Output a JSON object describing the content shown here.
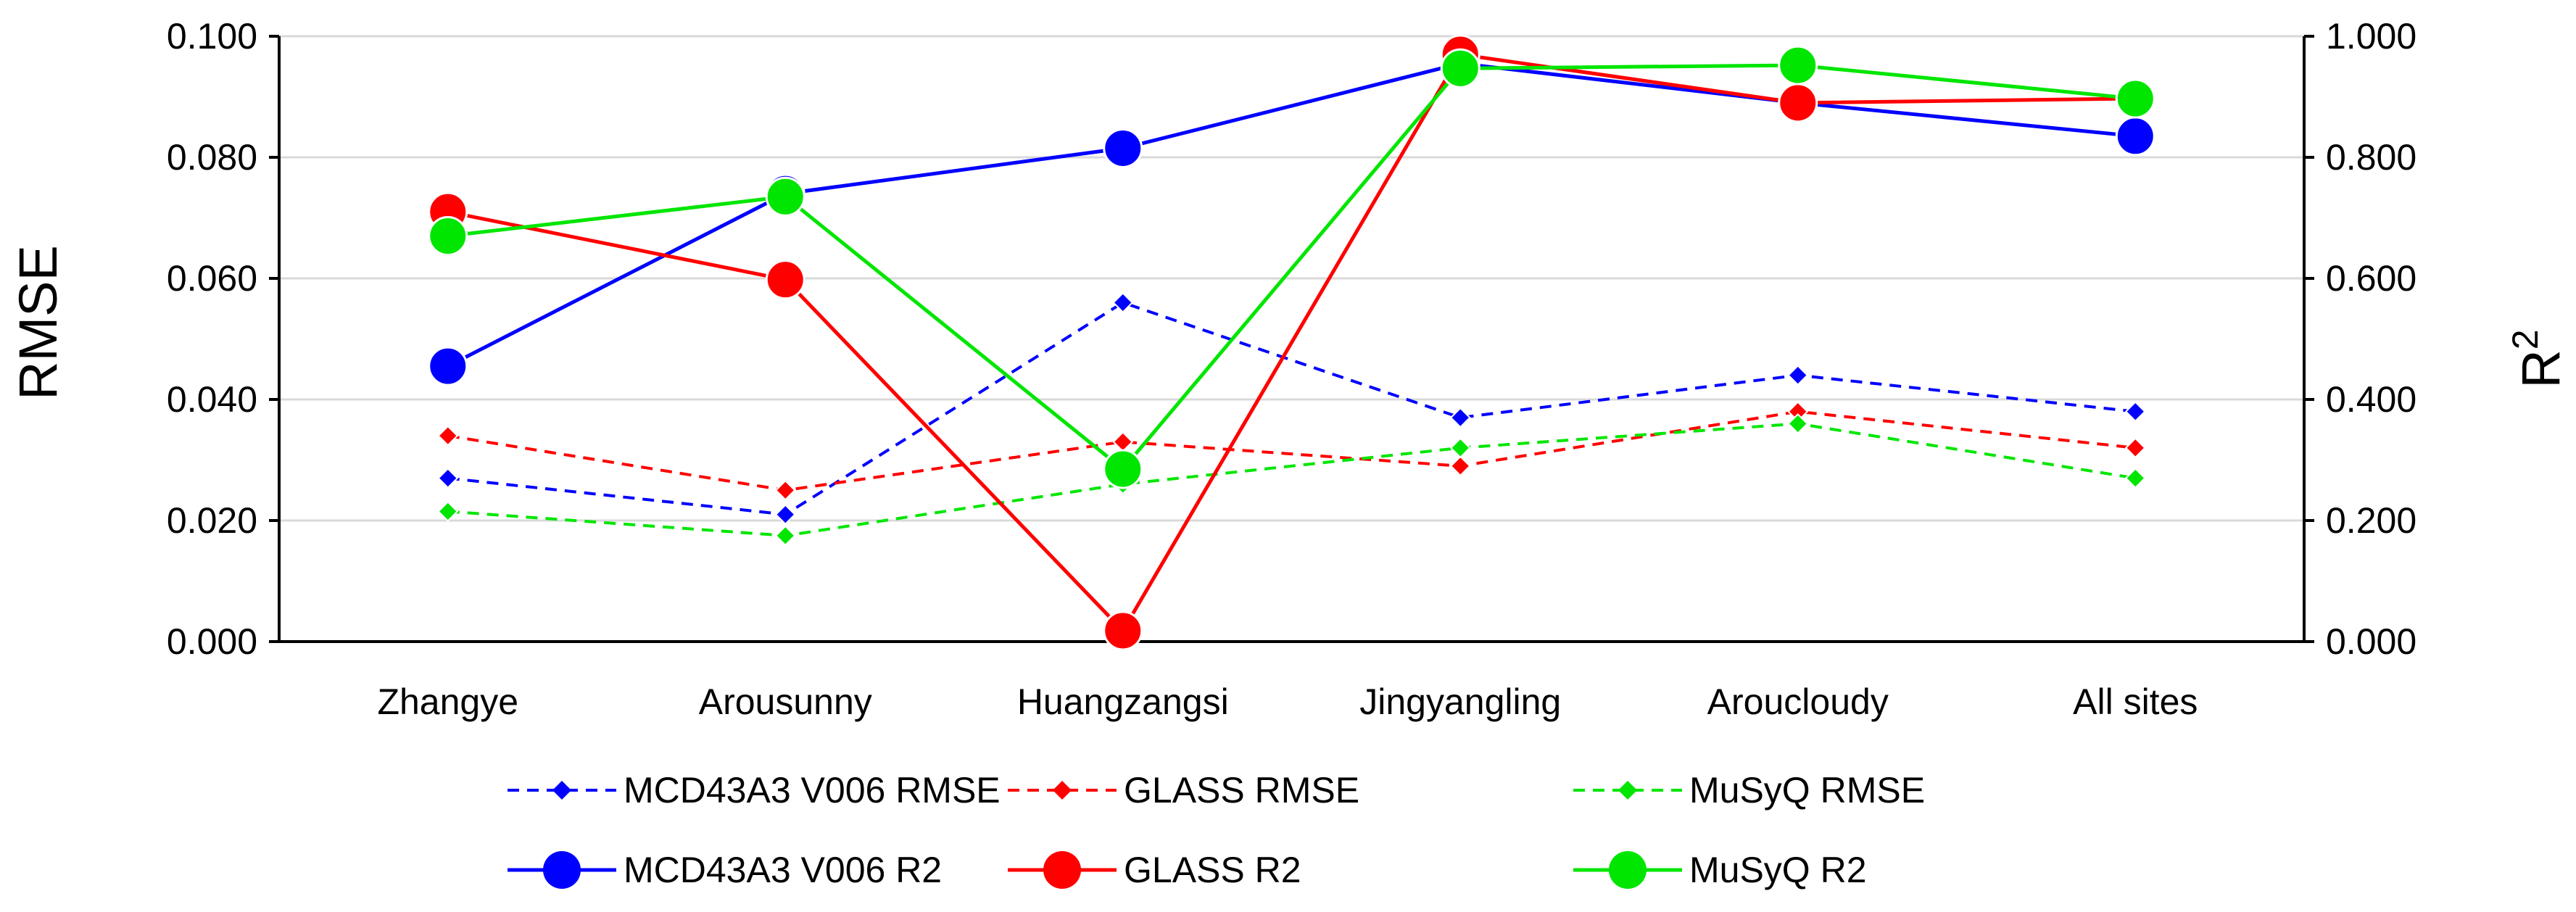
{
  "chart_data": {
    "type": "line",
    "categories": [
      "Zhangye",
      "Arousunny",
      "Huangzangsi",
      "Jingyangling",
      "Aroucloudy",
      "All sites"
    ],
    "y_left": {
      "label": "RMSE",
      "ylim": [
        0,
        0.1
      ],
      "ticks": [
        "0.000",
        "0.020",
        "0.040",
        "0.060",
        "0.080",
        "0.100"
      ]
    },
    "y_right": {
      "label": "R",
      "label_sup": "2",
      "ylim": [
        0,
        1
      ],
      "ticks": [
        "0.000",
        "0.200",
        "0.400",
        "0.600",
        "0.800",
        "1.000"
      ]
    },
    "series": [
      {
        "name": "MCD43A3 V006 RMSE",
        "axis": "left",
        "color": "#0000FF",
        "style": "dashed",
        "marker": "diamond",
        "values": [
          0.027,
          0.021,
          0.056,
          0.037,
          0.044,
          0.038
        ]
      },
      {
        "name": "GLASS RMSE",
        "axis": "left",
        "color": "#FF0000",
        "style": "dashed",
        "marker": "diamond",
        "values": [
          0.034,
          0.025,
          0.033,
          0.029,
          0.038,
          0.032
        ]
      },
      {
        "name": "MuSyQ RMSE",
        "axis": "left",
        "color": "#00E600",
        "style": "dashed",
        "marker": "diamond",
        "values": [
          0.0215,
          0.0175,
          0.026,
          0.032,
          0.036,
          0.027
        ]
      },
      {
        "name": "MCD43A3 V006 R2",
        "axis": "right",
        "color": "#0000FF",
        "style": "solid",
        "marker": "circle",
        "values": [
          0.455,
          0.74,
          0.815,
          0.955,
          0.89,
          0.835
        ]
      },
      {
        "name": "GLASS R2",
        "axis": "right",
        "color": "#FF0000",
        "style": "solid",
        "marker": "circle",
        "values": [
          0.71,
          0.598,
          0.018,
          0.97,
          0.89,
          0.897
        ]
      },
      {
        "name": "MuSyQ R2",
        "axis": "right",
        "color": "#00E600",
        "style": "solid",
        "marker": "circle",
        "values": [
          0.67,
          0.735,
          0.285,
          0.947,
          0.952,
          0.897
        ]
      }
    ],
    "grid": true,
    "legend_position": "bottom"
  }
}
